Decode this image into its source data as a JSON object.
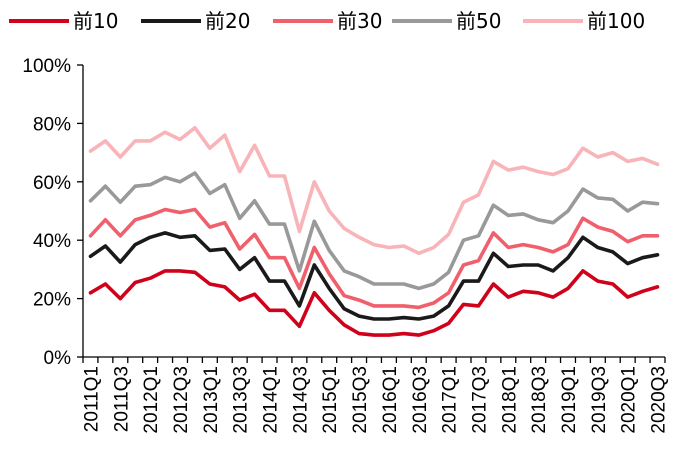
{
  "chart_data": {
    "type": "line",
    "title": "",
    "xlabel": "",
    "ylabel": "",
    "ylim": [
      0,
      100
    ],
    "y_ticks": [
      "0%",
      "20%",
      "40%",
      "60%",
      "80%",
      "100%"
    ],
    "grid": false,
    "legend_position": "top",
    "x_labels_shown": [
      "2011Q1",
      "2011Q3",
      "2012Q1",
      "2012Q3",
      "2013Q1",
      "2013Q3",
      "2014Q1",
      "2014Q3",
      "2015Q1",
      "2015Q3",
      "2016Q1",
      "2016Q3",
      "2017Q1",
      "2017Q3",
      "2018Q1",
      "2018Q3",
      "2019Q1",
      "2019Q3",
      "2020Q1",
      "2020Q3"
    ],
    "categories": [
      "2011Q1",
      "2011Q2",
      "2011Q3",
      "2011Q4",
      "2012Q1",
      "2012Q2",
      "2012Q3",
      "2012Q4",
      "2013Q1",
      "2013Q2",
      "2013Q3",
      "2013Q4",
      "2014Q1",
      "2014Q2",
      "2014Q3",
      "2014Q4",
      "2015Q1",
      "2015Q2",
      "2015Q3",
      "2015Q4",
      "2016Q1",
      "2016Q2",
      "2016Q3",
      "2016Q4",
      "2017Q1",
      "2017Q2",
      "2017Q3",
      "2017Q4",
      "2018Q1",
      "2018Q2",
      "2018Q3",
      "2018Q4",
      "2019Q1",
      "2019Q2",
      "2019Q3",
      "2019Q4",
      "2020Q1",
      "2020Q2",
      "2020Q3"
    ],
    "series": [
      {
        "name": "前10",
        "color": "#d0021b",
        "values": [
          22,
          25,
          20,
          25.5,
          27,
          29.5,
          29.5,
          29,
          25,
          24,
          19.5,
          21.5,
          16,
          16,
          10.5,
          22,
          16,
          11,
          8,
          7.5,
          7.5,
          8,
          7.5,
          9,
          11.5,
          18,
          17.5,
          25,
          20.5,
          22.5,
          22,
          20.5,
          23.5,
          29.5,
          26,
          25,
          20.5,
          22.5,
          24
        ]
      },
      {
        "name": "前20",
        "color": "#1a1a1a",
        "values": [
          34.5,
          38,
          32.5,
          38.5,
          41,
          42.5,
          41,
          41.5,
          36.5,
          37,
          30,
          34,
          26,
          26,
          17.5,
          31.5,
          23.5,
          16.5,
          14,
          13,
          13,
          13.5,
          13,
          14,
          17.5,
          26,
          26,
          35.5,
          31,
          31.5,
          31.5,
          29.5,
          34,
          41,
          37.5,
          36,
          32,
          34,
          35
        ]
      },
      {
        "name": "前30",
        "color": "#f0606c",
        "values": [
          41.5,
          47,
          41.5,
          47,
          48.5,
          50.5,
          49.5,
          50.5,
          44.5,
          46,
          37,
          42,
          34,
          34,
          23.5,
          37.5,
          28.5,
          21,
          19.5,
          17.5,
          17.5,
          17.5,
          17,
          18.5,
          22,
          31.5,
          33,
          42.5,
          37.5,
          38.5,
          37.5,
          36,
          38.5,
          47.5,
          44.5,
          43,
          39.5,
          41.5,
          41.5
        ]
      },
      {
        "name": "前50",
        "color": "#999999",
        "values": [
          53.5,
          58.5,
          53,
          58.5,
          59,
          61.5,
          60,
          63,
          56,
          59,
          47.5,
          53.5,
          45.5,
          45.5,
          29.5,
          46.5,
          36.5,
          29.5,
          27.5,
          25,
          25,
          25,
          23.5,
          25,
          29,
          40,
          41.5,
          52,
          48.5,
          49,
          47,
          46,
          50,
          57.5,
          54.5,
          54,
          50,
          53,
          52.5
        ]
      },
      {
        "name": "前100",
        "color": "#f8b4b8",
        "values": [
          70.5,
          74,
          68.5,
          74,
          74,
          77,
          74.5,
          78.5,
          71.5,
          76,
          63.5,
          72.5,
          62,
          62,
          43,
          60,
          50,
          44,
          41,
          38.5,
          37.5,
          38,
          35.5,
          37.5,
          42,
          53,
          55.5,
          67,
          64,
          65,
          63.5,
          62.5,
          64.5,
          71.5,
          68.5,
          70,
          67,
          68,
          66
        ]
      }
    ]
  }
}
